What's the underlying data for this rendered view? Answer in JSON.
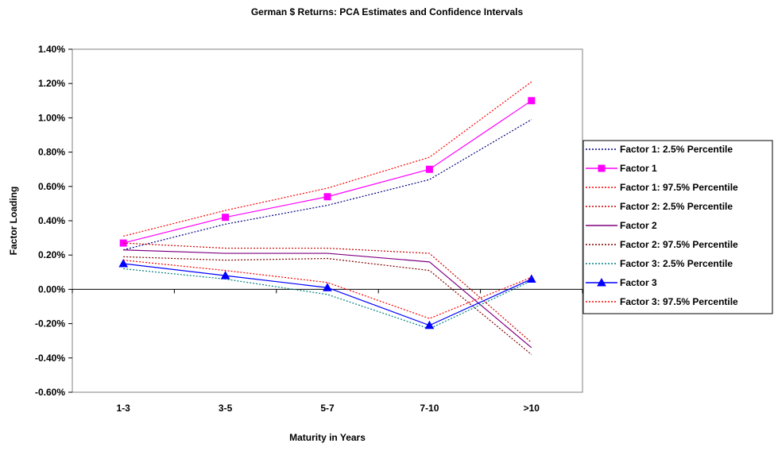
{
  "chart_data": {
    "type": "line",
    "title": "German $ Returns: PCA Estimates and Confidence Intervals",
    "xlabel": "Maturity in Years",
    "ylabel": "Factor Loading",
    "categories": [
      "1-3",
      "3-5",
      "5-7",
      "7-10",
      ">10"
    ],
    "ylim": [
      -0.006,
      0.014
    ],
    "ytick_step": 0.002,
    "y_tick_format": "percent-2dp",
    "grid": false,
    "legend_position": "right",
    "series": [
      {
        "name": "Factor 1: 2.5% Percentile",
        "values": [
          0.0023,
          0.0038,
          0.0049,
          0.0064,
          0.0099
        ],
        "color": "#000080",
        "dash": "dotted",
        "marker": "none"
      },
      {
        "name": "Factor 1",
        "values": [
          0.0027,
          0.0042,
          0.0054,
          0.007,
          0.011
        ],
        "color": "#ff00ff",
        "dash": "solid",
        "marker": "square"
      },
      {
        "name": "Factor 1: 97.5% Percentile",
        "values": [
          0.0031,
          0.0046,
          0.0059,
          0.0077,
          0.0121
        ],
        "color": "#ff0000",
        "dash": "dotted",
        "marker": "none"
      },
      {
        "name": "Factor 2: 2.5% Percentile",
        "values": [
          0.0027,
          0.0024,
          0.0024,
          0.0021,
          -0.0031
        ],
        "color": "#cc0000",
        "dash": "dotted",
        "marker": "none"
      },
      {
        "name": "Factor 2",
        "values": [
          0.0023,
          0.0021,
          0.0021,
          0.0016,
          -0.0034
        ],
        "color": "#800080",
        "dash": "solid",
        "marker": "none"
      },
      {
        "name": "Factor 2: 97.5% Percentile",
        "values": [
          0.0019,
          0.0017,
          0.0018,
          0.0011,
          -0.0038
        ],
        "color": "#800000",
        "dash": "dotted",
        "marker": "none"
      },
      {
        "name": "Factor 3: 2.5% Percentile",
        "values": [
          0.0012,
          0.0006,
          -0.0003,
          -0.0023,
          0.0005
        ],
        "color": "#008080",
        "dash": "dotted",
        "marker": "none"
      },
      {
        "name": "Factor 3",
        "values": [
          0.0015,
          0.0008,
          0.0001,
          -0.0021,
          0.0006
        ],
        "color": "#0000ff",
        "dash": "solid",
        "marker": "triangle"
      },
      {
        "name": "Factor 3: 97.5% Percentile",
        "values": [
          0.0017,
          0.0011,
          0.0004,
          -0.0017,
          0.0007
        ],
        "color": "#ff0000",
        "dash": "dotted",
        "marker": "none"
      }
    ]
  }
}
